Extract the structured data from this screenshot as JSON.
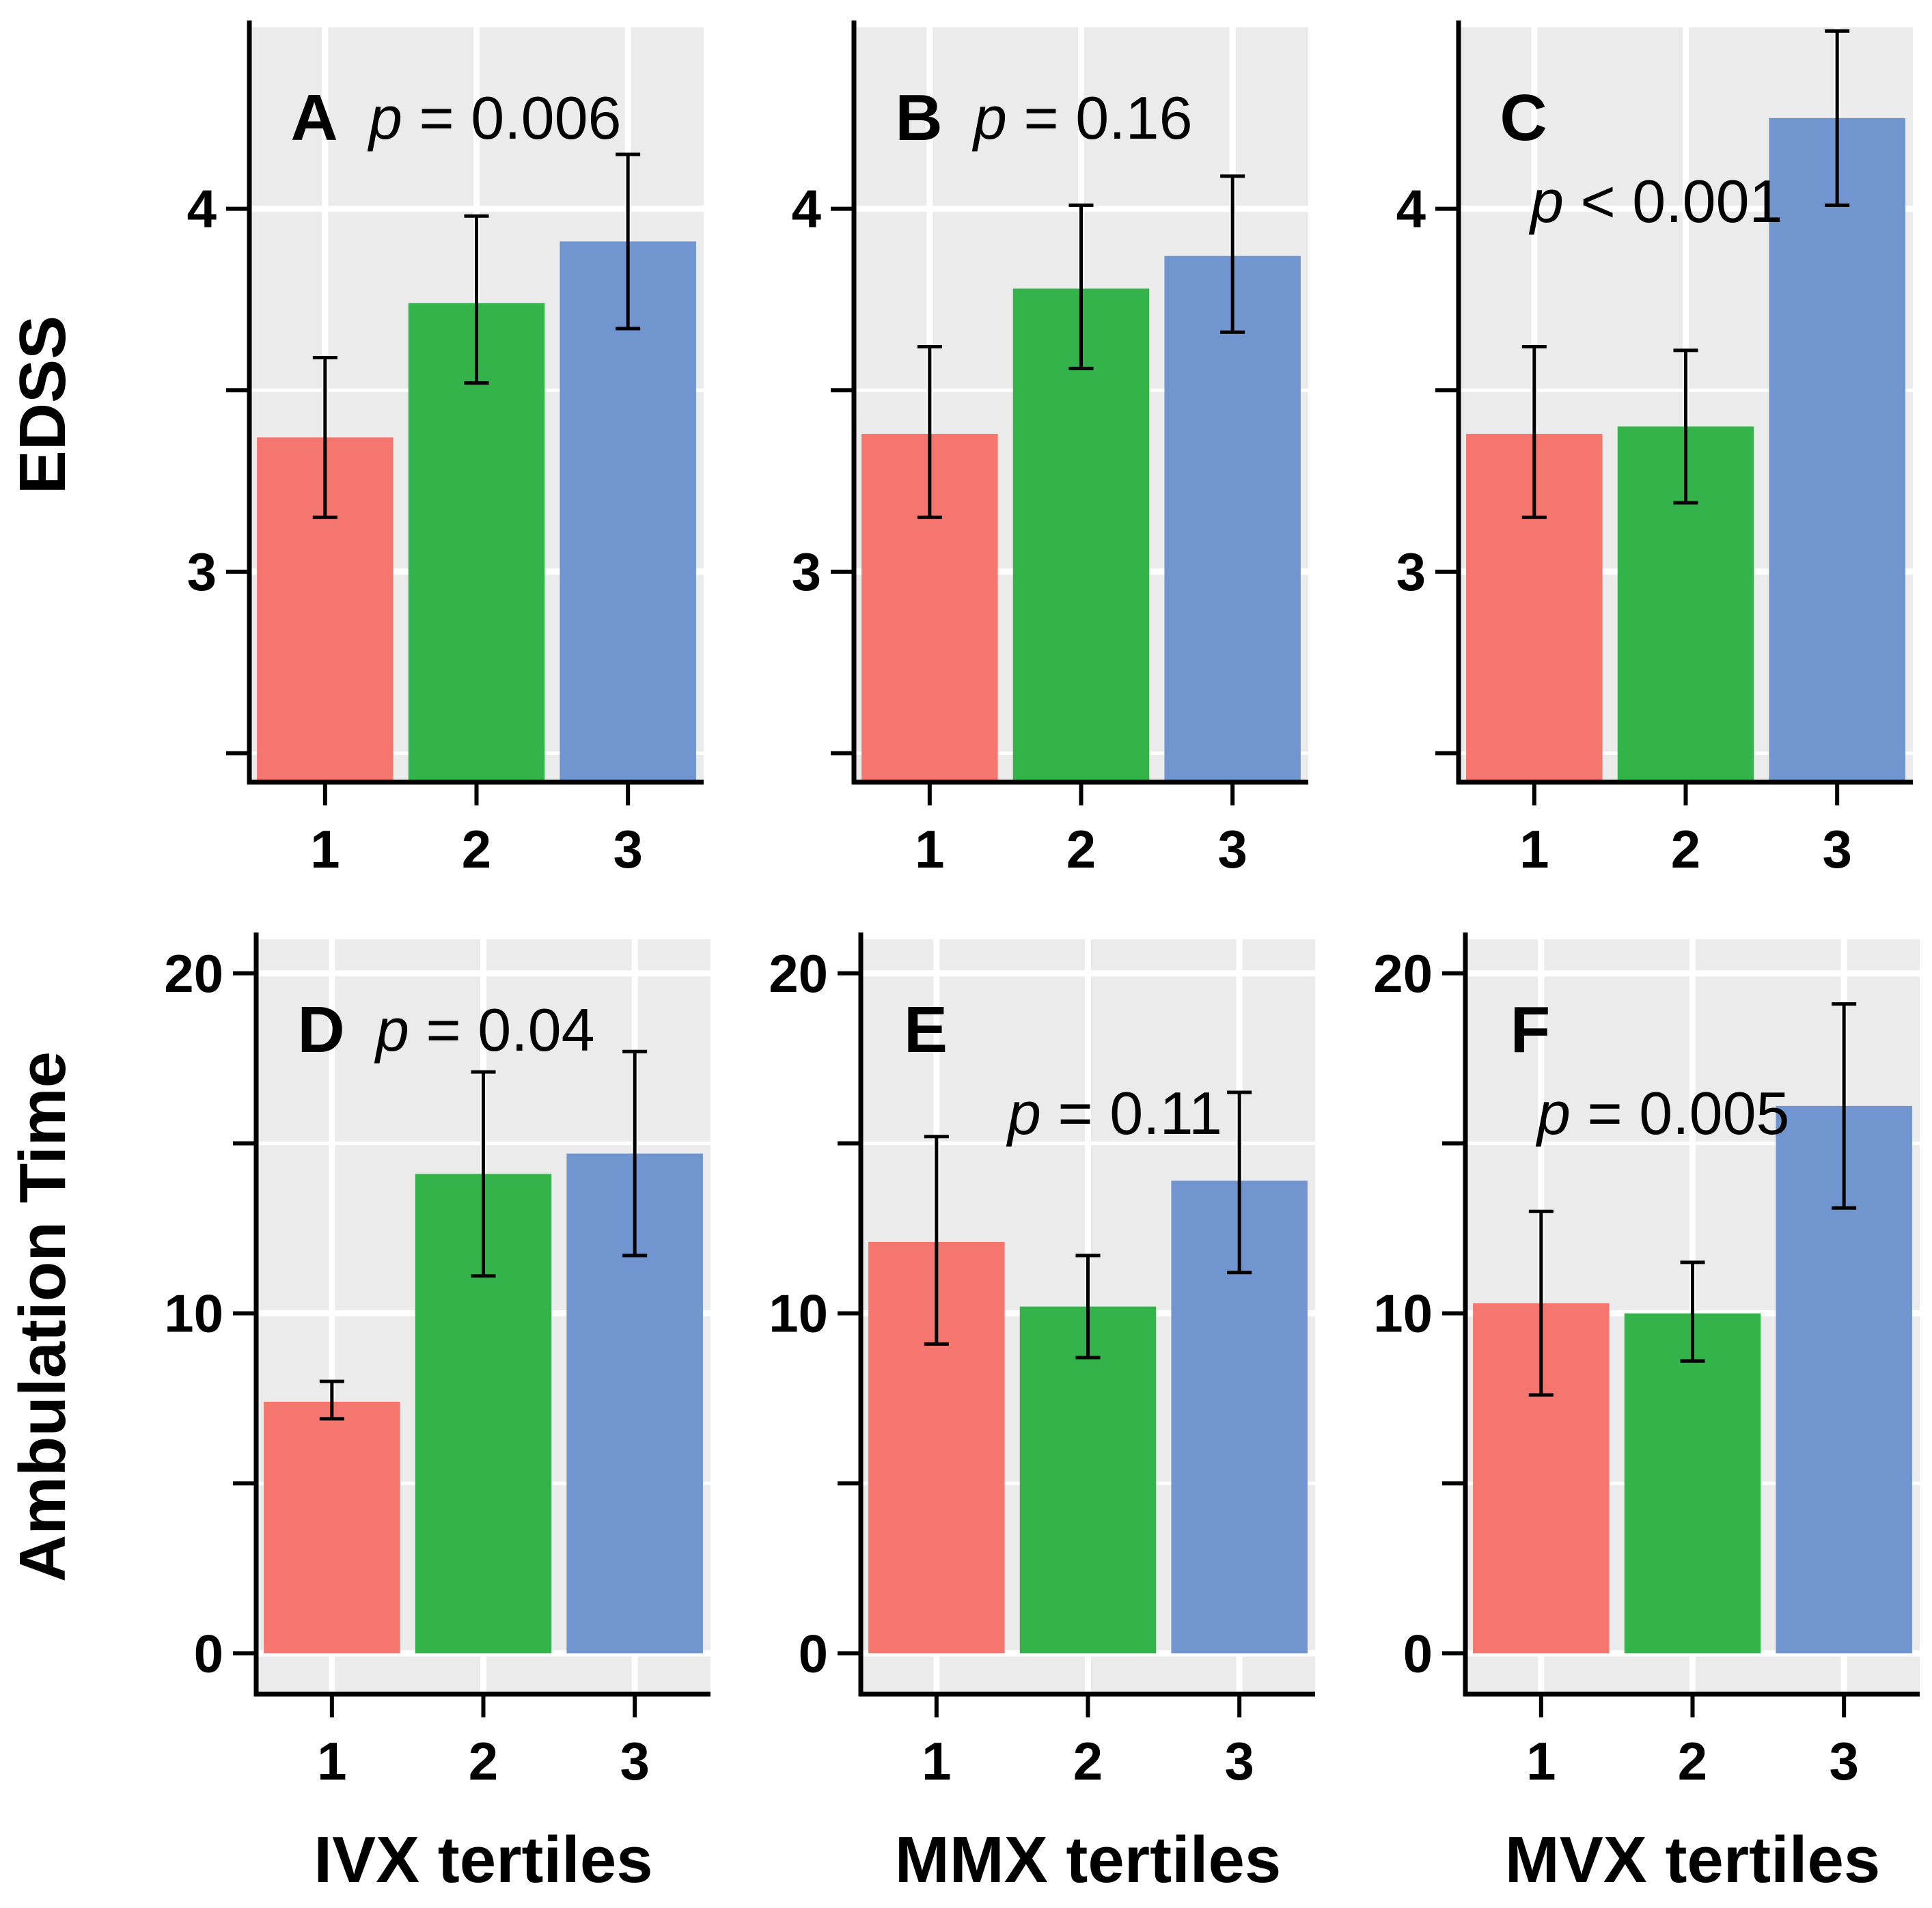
{
  "figure": {
    "colors": {
      "tertile_1": "#F4766E",
      "tertile_2": "#33B34A",
      "tertile_3": "#7195CF",
      "panel_bg": "#EBEBEB",
      "grid": "#FFFFFF",
      "axis": "#000000"
    }
  },
  "chart_data": [
    {
      "panel": "A",
      "type": "bar",
      "p_italic": "p",
      "p_rest": " = 0.006",
      "p_anchor": "top",
      "categories": [
        "1",
        "2",
        "3"
      ],
      "values": [
        3.37,
        3.74,
        3.91
      ],
      "err_low": [
        3.15,
        3.52,
        3.67
      ],
      "err_high": [
        3.59,
        3.98,
        4.15
      ],
      "ylabel": "EDSS",
      "xlabel": "",
      "ylim": [
        2.42,
        4.5
      ],
      "yticks": [
        3,
        4
      ],
      "yminor": [
        2.5,
        3.5
      ],
      "xtick_labels": [
        "1",
        "2",
        "3"
      ]
    },
    {
      "panel": "B",
      "type": "bar",
      "p_italic": "p",
      "p_rest": " = 0.16",
      "p_anchor": "top",
      "categories": [
        "1",
        "2",
        "3"
      ],
      "values": [
        3.38,
        3.78,
        3.87
      ],
      "err_low": [
        3.15,
        3.56,
        3.66
      ],
      "err_high": [
        3.62,
        4.01,
        4.09
      ],
      "ylabel": "",
      "xlabel": "",
      "ylim": [
        2.42,
        4.5
      ],
      "yticks": [
        3,
        4
      ],
      "yminor": [
        2.5,
        3.5
      ],
      "xtick_labels": [
        "1",
        "2",
        "3"
      ]
    },
    {
      "panel": "C",
      "type": "bar",
      "p_italic": "p",
      "p_rest": " < 0.001",
      "p_anchor": "second",
      "categories": [
        "1",
        "2",
        "3"
      ],
      "values": [
        3.38,
        3.4,
        4.25
      ],
      "err_low": [
        3.15,
        3.19,
        4.01
      ],
      "err_high": [
        3.62,
        3.61,
        4.49
      ],
      "ylabel": "",
      "xlabel": "",
      "ylim": [
        2.42,
        4.5
      ],
      "yticks": [
        3,
        4
      ],
      "yminor": [
        2.5,
        3.5
      ],
      "xtick_labels": [
        "1",
        "2",
        "3"
      ]
    },
    {
      "panel": "D",
      "type": "bar",
      "p_italic": "p",
      "p_rest": " = 0.04",
      "p_anchor": "top",
      "categories": [
        "1",
        "2",
        "3"
      ],
      "values": [
        7.4,
        14.1,
        14.7
      ],
      "err_low": [
        6.9,
        11.1,
        11.7
      ],
      "err_high": [
        8.0,
        17.1,
        17.7
      ],
      "ylabel": "Ambulation Time",
      "xlabel": "IVX tertiles",
      "ylim": [
        -1.2,
        21
      ],
      "yticks": [
        0,
        10,
        20
      ],
      "yminor": [
        5,
        15
      ],
      "xtick_labels": [
        "1",
        "2",
        "3"
      ]
    },
    {
      "panel": "E",
      "type": "bar",
      "p_italic": "p",
      "p_rest": " = 0.11",
      "p_anchor": "mid",
      "categories": [
        "1",
        "2",
        "3"
      ],
      "values": [
        12.1,
        10.2,
        13.9
      ],
      "err_low": [
        9.1,
        8.7,
        11.2
      ],
      "err_high": [
        15.2,
        11.7,
        16.5
      ],
      "ylabel": "",
      "xlabel": "MMX tertiles",
      "ylim": [
        -1.2,
        21
      ],
      "yticks": [
        0,
        10,
        20
      ],
      "yminor": [
        5,
        15
      ],
      "xtick_labels": [
        "1",
        "2",
        "3"
      ]
    },
    {
      "panel": "F",
      "type": "bar",
      "p_italic": "p",
      "p_rest": " = 0.005",
      "p_anchor": "mid",
      "categories": [
        "1",
        "2",
        "3"
      ],
      "values": [
        10.3,
        10.0,
        16.1
      ],
      "err_low": [
        7.6,
        8.6,
        13.1
      ],
      "err_high": [
        13.0,
        11.5,
        19.1
      ],
      "ylabel": "",
      "xlabel": "MVX tertiles",
      "ylim": [
        -1.2,
        21
      ],
      "yticks": [
        0,
        10,
        20
      ],
      "yminor": [
        5,
        15
      ],
      "xtick_labels": [
        "1",
        "2",
        "3"
      ]
    }
  ]
}
